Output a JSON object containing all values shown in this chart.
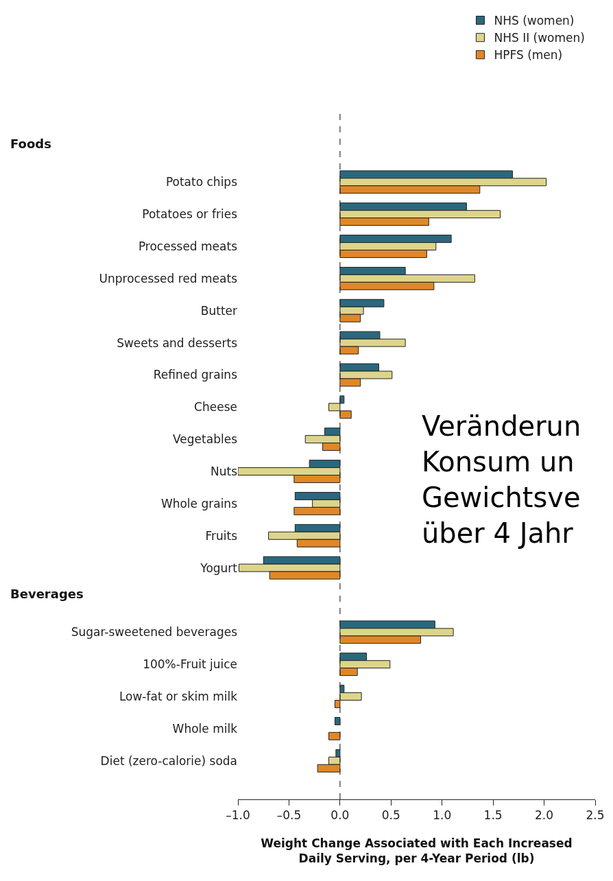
{
  "chart_data": {
    "type": "bar",
    "orientation": "horizontal",
    "categories": [
      null,
      "Potato chips",
      "Potatoes or fries",
      "Processed meats",
      "Unprocessed red meats",
      "Butter",
      "Sweets and desserts",
      "Refined grains",
      "Cheese",
      "Vegetables",
      "Nuts",
      "Whole grains",
      "Fruits",
      "Yogurt",
      null,
      "Sugar-sweetened beverages",
      "100%-Fruit juice",
      "Low-fat or skim milk",
      "Whole milk",
      "Diet (zero-calorie) soda"
    ],
    "series": [
      {
        "name": "NHS (women)",
        "color": "#2a687d",
        "values": [
          null,
          1.69,
          1.24,
          1.09,
          0.64,
          0.43,
          0.39,
          0.38,
          0.04,
          -0.15,
          -0.3,
          -0.44,
          -0.44,
          -0.75,
          null,
          0.93,
          0.26,
          0.04,
          -0.05,
          -0.04
        ]
      },
      {
        "name": "NHS II (women)",
        "color": "#ddd58b",
        "values": [
          null,
          2.02,
          1.57,
          0.94,
          1.32,
          0.23,
          0.64,
          0.51,
          -0.11,
          -0.34,
          -1.0,
          -0.27,
          -0.7,
          -0.99,
          null,
          1.11,
          0.49,
          0.21,
          null,
          -0.11
        ]
      },
      {
        "name": "HPFS (men)",
        "color": "#e08728",
        "values": [
          null,
          1.37,
          0.87,
          0.85,
          0.92,
          0.2,
          0.18,
          0.2,
          0.11,
          -0.17,
          -0.45,
          -0.45,
          -0.42,
          -0.69,
          null,
          0.79,
          0.17,
          -0.05,
          -0.11,
          -0.22
        ]
      }
    ],
    "xlabel": "Weight Change Associated with Each Increased\nDaily Serving, per 4-Year Period (lb)",
    "xlim": [
      -1.0,
      2.5
    ],
    "xticks": [
      {
        "value": -1.0,
        "label": "–1.0"
      },
      {
        "value": -0.5,
        "label": "–0.5"
      },
      {
        "value": 0.0,
        "label": "0.0"
      },
      {
        "value": 0.5,
        "label": "0.5"
      },
      {
        "value": 1.0,
        "label": "1.0"
      },
      {
        "value": 1.5,
        "label": "1.5"
      },
      {
        "value": 2.0,
        "label": "2.0"
      },
      {
        "value": 2.5,
        "label": "2.5"
      }
    ],
    "ref_lines": [
      {
        "axis": "x",
        "value": 0,
        "line_style": "dashed",
        "color": "#333333"
      }
    ],
    "annotations": [
      "Foods",
      "Beverages",
      "Veränderun\nKonsum un\nGewichtsve\nüber 4 Jahr"
    ],
    "legend": "top right"
  }
}
